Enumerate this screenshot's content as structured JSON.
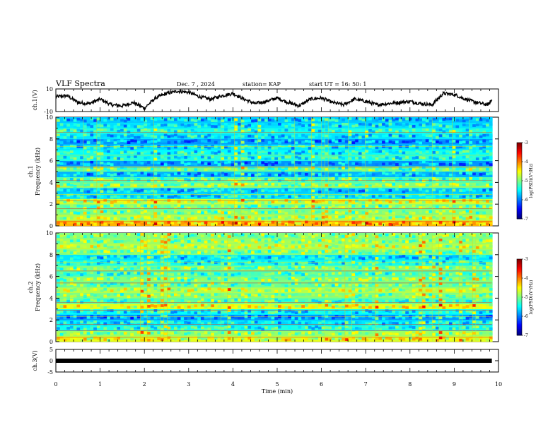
{
  "header": {
    "title": "VLF Spectra",
    "date": "Dec. 7 , 2024",
    "station": "station= KAP",
    "start_ut": "start UT =  16: 50: 1"
  },
  "chart_data": [
    {
      "type": "line",
      "title": "",
      "ylabel": "ch.1(V)",
      "xlabel": "",
      "xlim": [
        0,
        10
      ],
      "ylim": [
        -10,
        10
      ],
      "yticks": [
        "10",
        "-10"
      ],
      "series": [
        {
          "x": [
            0,
            0.25,
            0.5,
            0.75,
            1.0,
            1.25,
            1.5,
            1.75,
            2.0,
            2.25,
            2.5,
            2.75,
            3.0,
            3.25,
            3.5,
            3.75,
            4.0,
            4.25,
            4.5,
            4.75,
            5.0,
            5.25,
            5.5,
            5.75,
            6.0,
            6.25,
            6.5,
            6.75,
            7.0,
            7.25,
            7.5,
            7.75,
            8.0,
            8.25,
            8.5,
            8.75,
            9.0,
            9.25,
            9.5,
            9.75,
            9.85
          ],
          "values": [
            3,
            4,
            -2,
            -3,
            1,
            -4,
            -5,
            -2,
            -7,
            2,
            6,
            8,
            7,
            3,
            1,
            4,
            6,
            1,
            -3,
            -1,
            2,
            -2,
            -5,
            1,
            2,
            -2,
            -4,
            1,
            -1,
            -4,
            -3,
            -2,
            -1,
            -3,
            -4,
            6,
            5,
            1,
            -2,
            -4,
            0
          ]
        }
      ]
    },
    {
      "type": "heatmap",
      "title": "",
      "ylabel": "ch.1 Frequency (kHz)",
      "xlabel": "",
      "xlim": [
        0,
        10
      ],
      "ylim": [
        0,
        10
      ],
      "yticks": [
        "0",
        "2",
        "4",
        "6",
        "8",
        "10"
      ],
      "colorbar": {
        "label": "log(PSD)(V²/Hz)",
        "range": [
          -7,
          -3
        ],
        "ticks": [
          "-3",
          "-4",
          "-5",
          "-6",
          "-7"
        ]
      },
      "freq_khz": [
        0.25,
        0.75,
        1.25,
        1.75,
        2.25,
        2.75,
        3.25,
        3.75,
        4.25,
        4.75,
        5.25,
        5.75,
        6.25,
        6.75,
        7.25,
        7.75,
        8.25,
        8.75,
        9.25,
        9.75
      ],
      "mean_log_psd": [
        -4.2,
        -4.8,
        -5.0,
        -5.1,
        -4.7,
        -5.6,
        -5.7,
        -5.0,
        -5.2,
        -5.8,
        -5.1,
        -5.9,
        -5.4,
        -5.5,
        -5.6,
        -5.9,
        -5.6,
        -5.4,
        -5.6,
        -5.7
      ]
    },
    {
      "type": "heatmap",
      "title": "",
      "ylabel": "ch.2 Frequency (kHz)",
      "xlabel": "",
      "xlim": [
        0,
        10
      ],
      "ylim": [
        0,
        10
      ],
      "yticks": [
        "0",
        "2",
        "4",
        "6",
        "8",
        "10"
      ],
      "colorbar": {
        "label": "log(PSD)(V²/Hz)",
        "range": [
          -7,
          -3
        ],
        "ticks": [
          "-3",
          "-4",
          "-5",
          "-6",
          "-7"
        ]
      },
      "freq_khz": [
        0.25,
        0.75,
        1.25,
        1.75,
        2.25,
        2.75,
        3.25,
        3.75,
        4.25,
        4.75,
        5.25,
        5.75,
        6.25,
        6.75,
        7.25,
        7.75,
        8.25,
        8.75,
        9.25,
        9.75
      ],
      "mean_log_psd": [
        -4.6,
        -4.9,
        -5.4,
        -5.6,
        -5.9,
        -5.5,
        -4.6,
        -5.2,
        -5.0,
        -4.8,
        -5.1,
        -5.0,
        -5.2,
        -5.0,
        -5.4,
        -5.6,
        -5.0,
        -4.8,
        -4.9,
        -5.0
      ]
    },
    {
      "type": "line",
      "title": "",
      "ylabel": "ch.3(V)",
      "xlabel": "Time (min)",
      "xlim": [
        0,
        10
      ],
      "ylim": [
        -5,
        5
      ],
      "yticks": [
        "5",
        "0",
        "-5"
      ],
      "xticks": [
        "0",
        "1",
        "2",
        "3",
        "4",
        "5",
        "6",
        "7",
        "8",
        "9",
        "10"
      ],
      "series": [
        {
          "x": [
            0,
            9.85
          ],
          "values": [
            0,
            0
          ]
        }
      ]
    }
  ]
}
